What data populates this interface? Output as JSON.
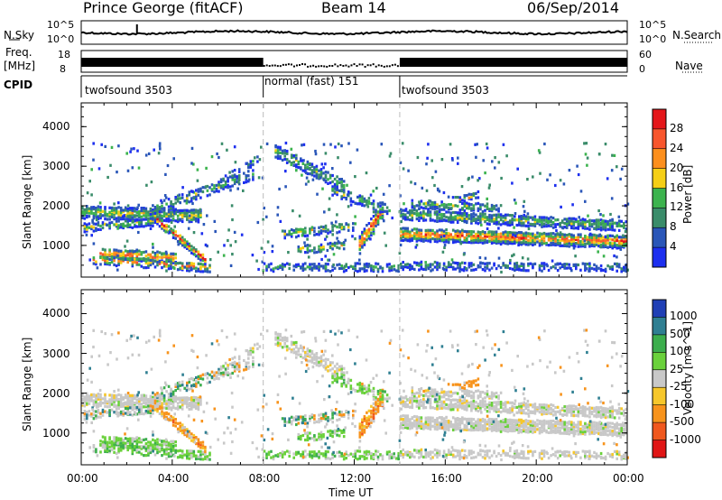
{
  "header": {
    "station": "Prince George (fitACF)",
    "beam": "Beam 14",
    "date": "06/Sep/2014"
  },
  "top_panels": {
    "noise": {
      "left_label": "N.Sky",
      "right_label": "N.Search",
      "left_ticks": [
        "10^5",
        "10^0"
      ],
      "right_ticks": [
        "10^5",
        "10^0"
      ]
    },
    "freq": {
      "left_label": "Freq.",
      "left_unit": "[MHz]",
      "right_label": "Nave",
      "left_ticks": [
        "18",
        "8"
      ],
      "right_ticks": [
        "60",
        "0"
      ]
    },
    "cpid": {
      "label": "CPID",
      "segments": [
        "twofsound 3503",
        "normal (fast) 151",
        "twofsound 3503"
      ]
    }
  },
  "chart_data": [
    {
      "type": "heatmap",
      "quantity": "Power",
      "ylabel": "Slant Range [km]",
      "yticks": [
        1000,
        2000,
        3000,
        4000
      ],
      "ylim": [
        200,
        4600
      ],
      "xlim": [
        0,
        24
      ],
      "xticks": [
        "00:00",
        "04:00",
        "08:00",
        "12:00",
        "16:00",
        "20:00",
        "00:00"
      ],
      "colorbar": {
        "label": "Power [dB]",
        "ticks": [
          "28",
          "24",
          "20",
          "16",
          "12",
          "8",
          "4"
        ],
        "colors": [
          "#e4161a",
          "#f8562d",
          "#fc8f1d",
          "#f5cf16",
          "#3cb34e",
          "#3a8c6a",
          "#2a56b8",
          "#1d2fef"
        ]
      }
    },
    {
      "type": "heatmap",
      "quantity": "Velocity",
      "ylabel": "Slant Range [km]",
      "xlabel": "Time UT",
      "yticks": [
        1000,
        2000,
        3000,
        4000
      ],
      "ylim": [
        200,
        4600
      ],
      "xlim": [
        0,
        24
      ],
      "xticks": [
        "00:00",
        "04:00",
        "08:00",
        "12:00",
        "16:00",
        "20:00",
        "00:00"
      ],
      "colorbar": {
        "label": "Velocity [m s^-1]",
        "ticks": [
          "1000",
          "500",
          "100",
          "25",
          "-25",
          "-100",
          "-500",
          "-1000"
        ],
        "colors": [
          "#1f3fb5",
          "#2f7f92",
          "#3cae4d",
          "#6ad13b",
          "#c8c8c8",
          "#f6c72b",
          "#f7931c",
          "#f0581e",
          "#e01616"
        ]
      }
    }
  ]
}
